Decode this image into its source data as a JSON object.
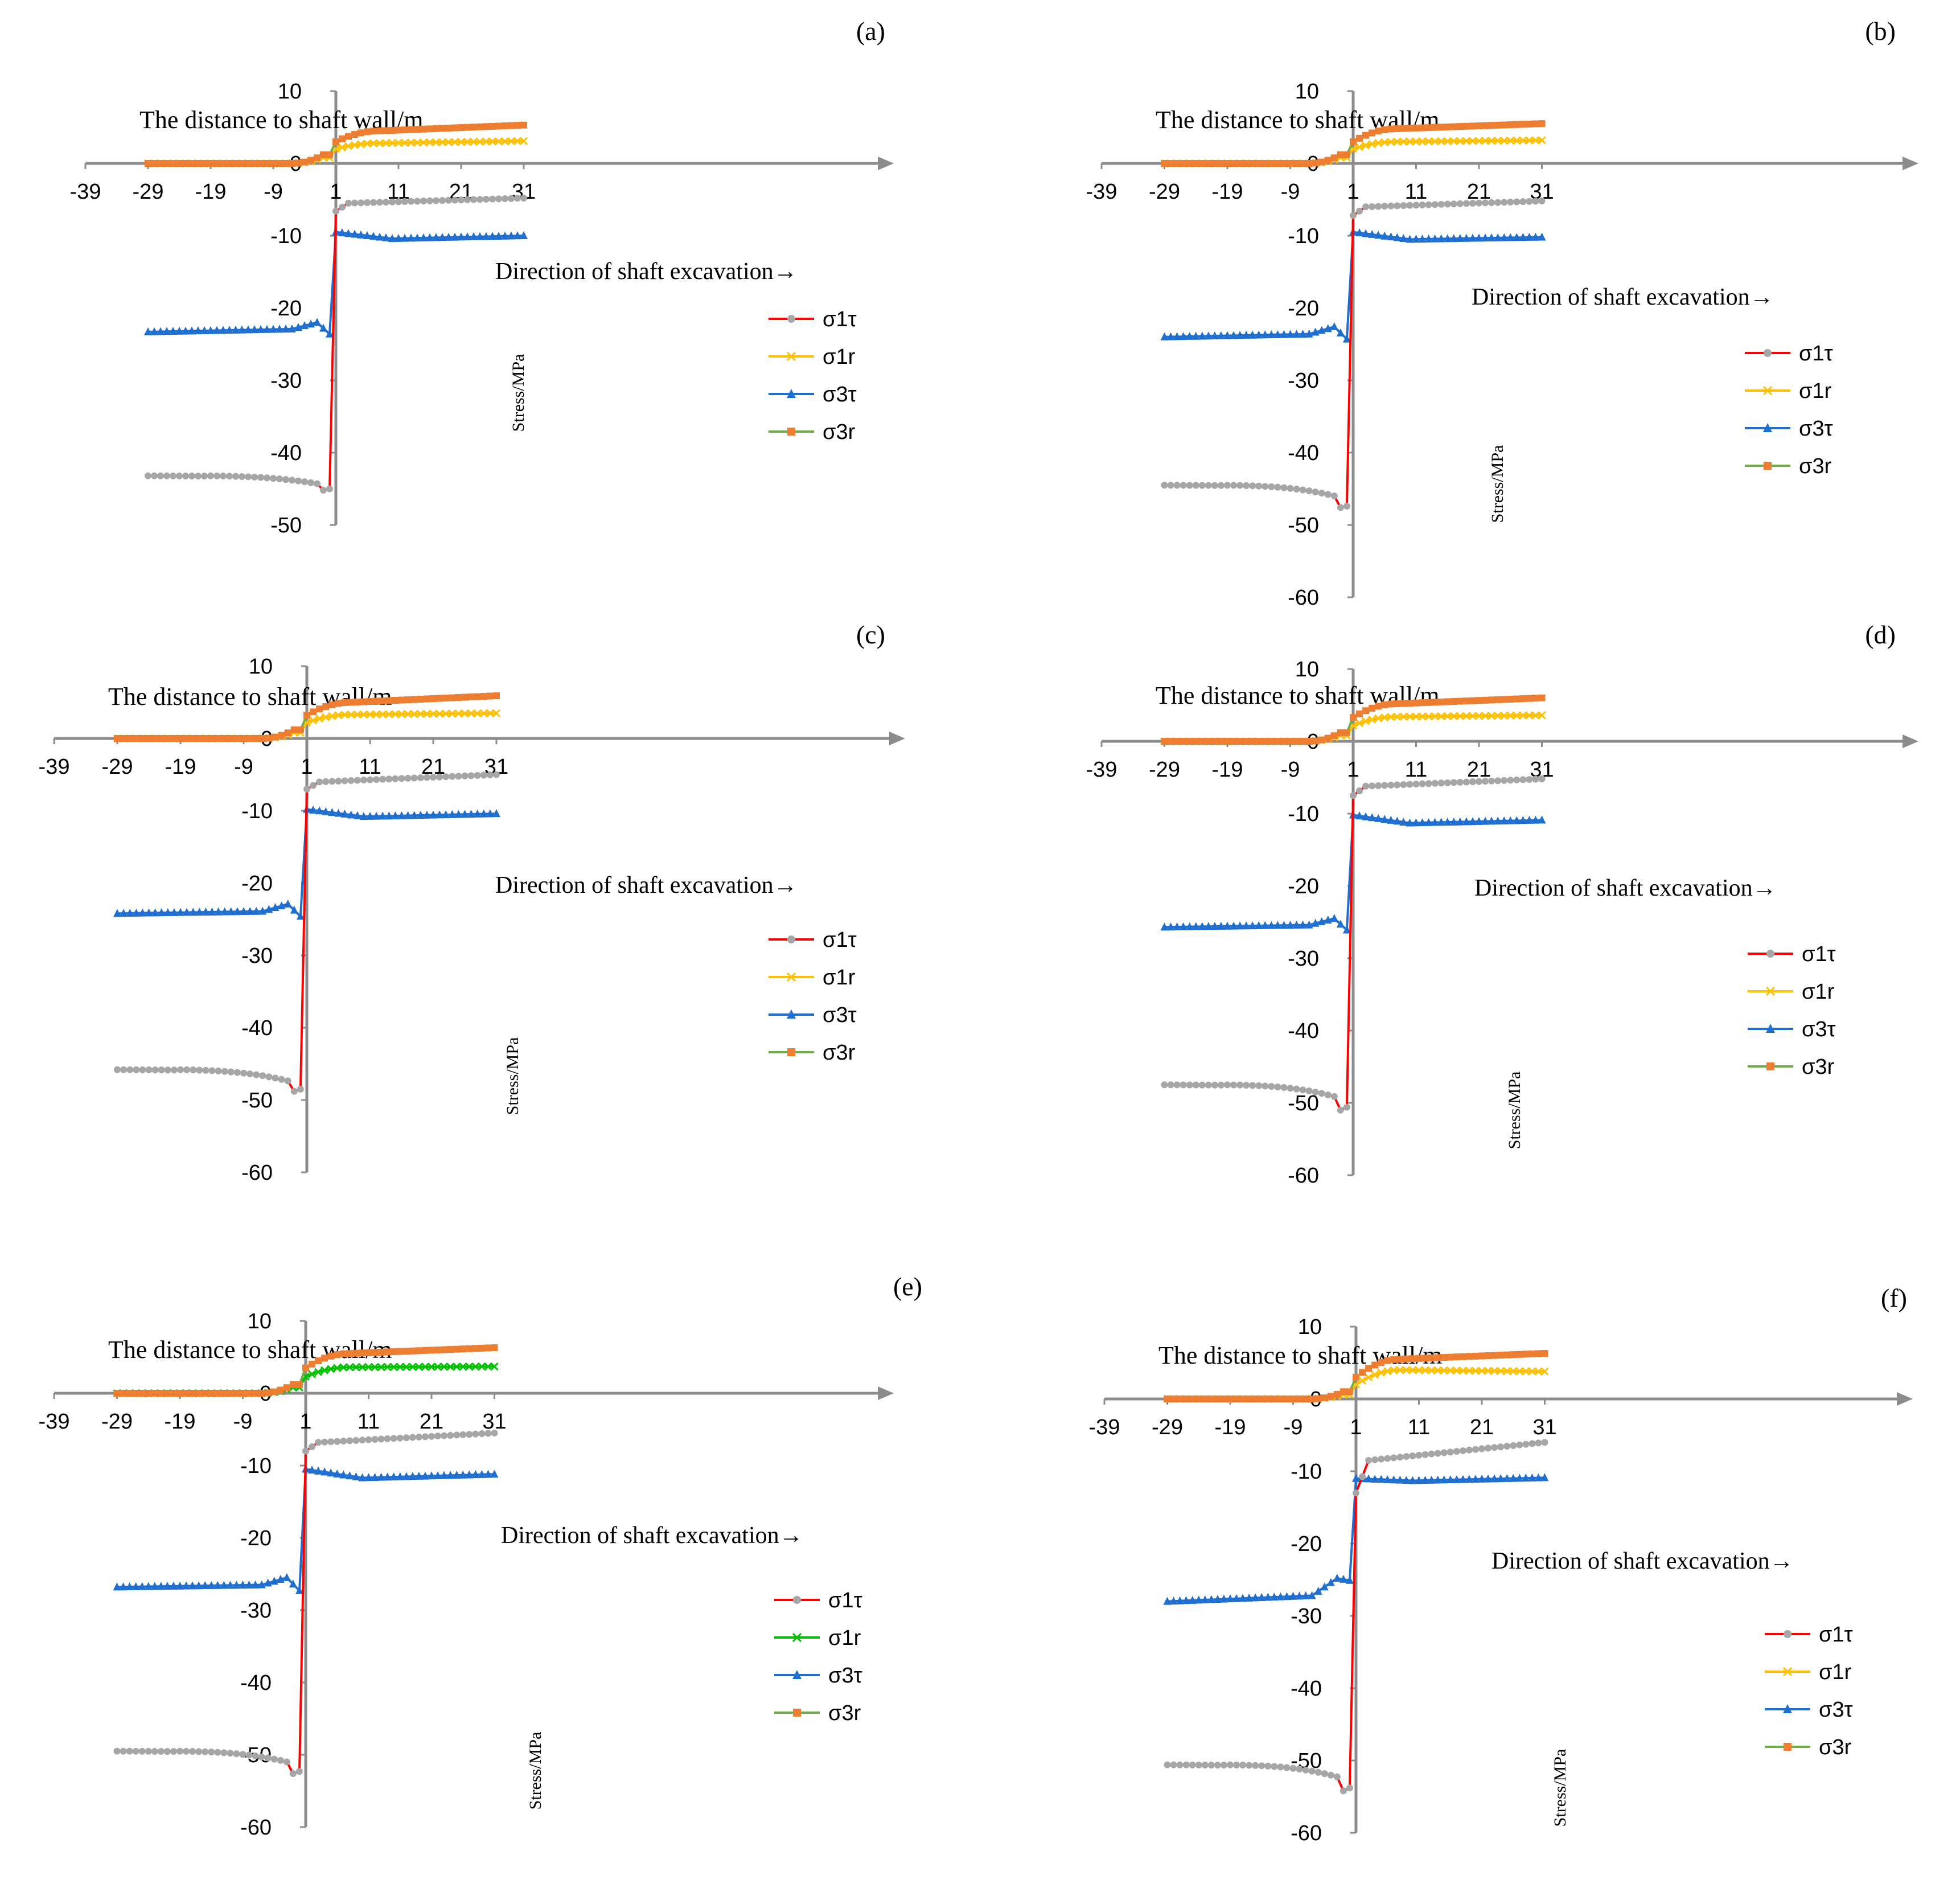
{
  "figure": {
    "xlabel": "The distance to shaft wall/m",
    "ylabel": "Stress/MPa",
    "direction": "Direction of shaft excavation→",
    "colors": {
      "s1t": "#ff0000",
      "s1r": "#ffc000",
      "s1r_alt": "#00c000",
      "s3t": "#1f6fd0",
      "s3r": "#70ad47",
      "s3r_marker": "#ed7d31",
      "s1t_marker": "#a6a6a6",
      "axis": "#8c8c8c"
    }
  },
  "chart_data": [
    {
      "type": "line",
      "label": "(a)",
      "title": "",
      "xlabel": "The distance to shaft wall/m",
      "ylabel": "Stress/MPa",
      "xlim": [
        -39,
        41
      ],
      "ylim": [
        -50,
        10
      ],
      "xticks": [
        "-39",
        "-29",
        "-19",
        "-9",
        "1",
        "11",
        "21",
        "31"
      ],
      "yticks": [
        "10",
        "0",
        "-10",
        "-20",
        "-30",
        "-40",
        "-50"
      ],
      "direction": "Direction of shaft excavation→",
      "legend": [
        "σ1τ",
        "σ1r",
        "σ3τ",
        "σ3r"
      ],
      "series": [
        {
          "name": "σ1τ",
          "plateau": -43.2,
          "mid": -43.6,
          "nearMin": -45.2,
          "atZero": -45.0,
          "jump": -29,
          "valueAt1": -6.6,
          "valueAt3": -5.5,
          "end": -4.8
        },
        {
          "name": "σ1r",
          "plateau": 0,
          "nearWall": 0.8,
          "valueAt1": 2.0,
          "rise": 2.8,
          "end": 3.1
        },
        {
          "name": "σ3τ",
          "plateau": -23.3,
          "mid": -22.9,
          "hump": -22.0,
          "dip": -23.6,
          "jump": -20.0,
          "valueAt1": -9.5,
          "trough": -10.4,
          "end": -10.0
        },
        {
          "name": "σ3r",
          "plateau": 0,
          "nearWall": 1.2,
          "valueAt1": 3.0,
          "rise": 4.5,
          "end": 5.3
        }
      ]
    },
    {
      "type": "line",
      "label": "(b)",
      "title": "",
      "xlabel": "The distance to shaft wall/m",
      "ylabel": "Stress/MPa",
      "xlim": [
        -39,
        41
      ],
      "ylim": [
        -60,
        10
      ],
      "xticks": [
        "-39",
        "-29",
        "-19",
        "-9",
        "1",
        "11",
        "21",
        "31"
      ],
      "yticks": [
        "10",
        "0",
        "-10",
        "-20",
        "-30",
        "-40",
        "-50",
        "-60"
      ],
      "direction": "Direction of shaft excavation→",
      "legend": [
        "σ1τ",
        "σ1r",
        "σ3τ",
        "σ3r"
      ],
      "series": [
        {
          "name": "σ1τ",
          "plateau": -44.5,
          "mid": -44.9,
          "nearMin": -47.6,
          "atZero": -47.4,
          "jump": -30,
          "valueAt1": -7.2,
          "valueAt3": -6.0,
          "end": -5.2
        },
        {
          "name": "σ1r",
          "plateau": 0,
          "nearWall": 0.8,
          "valueAt1": 2.0,
          "rise": 3.0,
          "end": 3.2
        },
        {
          "name": "σ3τ",
          "plateau": -24.0,
          "mid": -23.6,
          "hump": -22.6,
          "dip": -24.3,
          "jump": -21.0,
          "valueAt1": -9.5,
          "trough": -10.5,
          "end": -10.2
        },
        {
          "name": "σ3r",
          "plateau": 0,
          "nearWall": 1.2,
          "valueAt1": 3.0,
          "rise": 4.8,
          "end": 5.5
        }
      ]
    },
    {
      "type": "line",
      "label": "(c)",
      "title": "",
      "xlabel": "The distance to shaft wall/m",
      "ylabel": "Stress/MPa",
      "xlim": [
        -39,
        41
      ],
      "ylim": [
        -60,
        10
      ],
      "xticks": [
        "-39",
        "-29",
        "-19",
        "-9",
        "1",
        "11",
        "21",
        "31"
      ],
      "yticks": [
        "10",
        "0",
        "-10",
        "-20",
        "-30",
        "-40",
        "-50",
        "-60"
      ],
      "direction": "Direction of shaft excavation→",
      "legend": [
        "σ1τ",
        "σ1r",
        "σ3τ",
        "σ3r"
      ],
      "series": [
        {
          "name": "σ1τ",
          "plateau": -45.8,
          "mid": -46.3,
          "nearMin": -48.8,
          "atZero": -48.5,
          "jump": -31,
          "valueAt1": -7.0,
          "valueAt3": -6.0,
          "end": -5.0
        },
        {
          "name": "σ1r",
          "plateau": 0,
          "nearWall": 0.8,
          "valueAt1": 2.2,
          "rise": 3.3,
          "end": 3.5
        },
        {
          "name": "σ3τ",
          "plateau": -24.2,
          "mid": -23.9,
          "hump": -22.9,
          "dip": -24.6,
          "jump": -21.0,
          "valueAt1": -9.8,
          "trough": -10.8,
          "end": -10.4
        },
        {
          "name": "σ3r",
          "plateau": 0,
          "nearWall": 1.2,
          "valueAt1": 3.2,
          "rise": 5.0,
          "end": 5.9
        }
      ]
    },
    {
      "type": "line",
      "label": "(d)",
      "title": "",
      "xlabel": "The distance to shaft wall/m",
      "ylabel": "Stress/MPa",
      "xlim": [
        -39,
        41
      ],
      "ylim": [
        -60,
        10
      ],
      "xticks": [
        "-39",
        "-29",
        "-19",
        "-9",
        "1",
        "11",
        "21",
        "31"
      ],
      "yticks": [
        "10",
        "0",
        "-10",
        "-20",
        "-30",
        "-40",
        "-50",
        "-60"
      ],
      "direction": "Direction of shaft excavation→",
      "legend": [
        "σ1τ",
        "σ1r",
        "σ3τ",
        "σ3r"
      ],
      "series": [
        {
          "name": "σ1τ",
          "plateau": -47.5,
          "mid": -47.9,
          "nearMin": -51.0,
          "atZero": -50.6,
          "jump": -32,
          "valueAt1": -7.5,
          "valueAt3": -6.2,
          "end": -5.2
        },
        {
          "name": "σ1r",
          "plateau": 0,
          "nearWall": 0.8,
          "valueAt1": 2.2,
          "rise": 3.4,
          "end": 3.6
        },
        {
          "name": "σ3τ",
          "plateau": -25.7,
          "mid": -25.4,
          "hump": -24.5,
          "dip": -26.1,
          "jump": -22.0,
          "valueAt1": -10.2,
          "trough": -11.3,
          "end": -10.9
        },
        {
          "name": "σ3r",
          "plateau": 0,
          "nearWall": 1.2,
          "valueAt1": 3.3,
          "rise": 5.2,
          "end": 6.0
        }
      ]
    },
    {
      "type": "line",
      "label": "(e)",
      "title": "",
      "xlabel": "The distance to shaft wall/m",
      "ylabel": "Stress/MPa",
      "xlim": [
        -39,
        41
      ],
      "ylim": [
        -60,
        10
      ],
      "xticks": [
        "-39",
        "-29",
        "-19",
        "-9",
        "1",
        "11",
        "21",
        "31"
      ],
      "yticks": [
        "10",
        "0",
        "-10",
        "-20",
        "-30",
        "-40",
        "-50",
        "-60"
      ],
      "direction": "Direction of shaft excavation→",
      "legend": [
        "σ1τ",
        "σ1r",
        "σ3τ",
        "σ3r"
      ],
      "series": [
        {
          "name": "σ1τ",
          "plateau": -49.5,
          "mid": -49.9,
          "nearMin": -52.6,
          "atZero": -52.3,
          "jump": -34,
          "valueAt1": -8.0,
          "valueAt3": -6.8,
          "end": -5.5
        },
        {
          "name": "σ1r",
          "plateau": 0,
          "nearWall": 0.8,
          "valueAt1": 2.3,
          "rise": 3.6,
          "end": 3.7
        },
        {
          "name": "σ3τ",
          "plateau": -26.8,
          "mid": -26.5,
          "hump": -25.5,
          "dip": -27.3,
          "jump": -23.0,
          "valueAt1": -10.5,
          "trough": -11.7,
          "end": -11.2
        },
        {
          "name": "σ3r",
          "plateau": 0,
          "nearWall": 1.2,
          "valueAt1": 3.5,
          "rise": 5.5,
          "end": 6.3
        }
      ]
    },
    {
      "type": "line",
      "label": "(f)",
      "title": "",
      "xlabel": "The distance to shaft wall/m",
      "ylabel": "Stress/MPa",
      "xlim": [
        -39,
        41
      ],
      "ylim": [
        -60,
        10
      ],
      "xticks": [
        "-39",
        "-29",
        "-19",
        "-9",
        "1",
        "11",
        "21",
        "31"
      ],
      "yticks": [
        "10",
        "0",
        "-10",
        "-20",
        "-30",
        "-40",
        "-50",
        "-60"
      ],
      "direction": "Direction of shaft excavation→",
      "legend": [
        "σ1τ",
        "σ1r",
        "σ3τ",
        "σ3r"
      ],
      "series": [
        {
          "name": "σ1τ",
          "plateau": -50.6,
          "mid": -51.0,
          "nearMin": -54.2,
          "atZero": -53.8,
          "jump": -32,
          "valueAt1": -13.0,
          "valueAt3": -8.5,
          "end": -6.0
        },
        {
          "name": "σ1r",
          "plateau": 0,
          "nearWall": 0.6,
          "valueAt1": 2.0,
          "rise": 4.0,
          "end": 3.8
        },
        {
          "name": "σ3τ",
          "plateau": -28.0,
          "mid": -27.2,
          "hump": -24.8,
          "dip": -25.1,
          "jump": -17.0,
          "valueAt1": -11.0,
          "trough": -11.3,
          "end": -10.9
        },
        {
          "name": "σ3r",
          "plateau": 0,
          "nearWall": 1.0,
          "valueAt1": 3.0,
          "rise": 5.5,
          "end": 6.3
        }
      ]
    }
  ]
}
